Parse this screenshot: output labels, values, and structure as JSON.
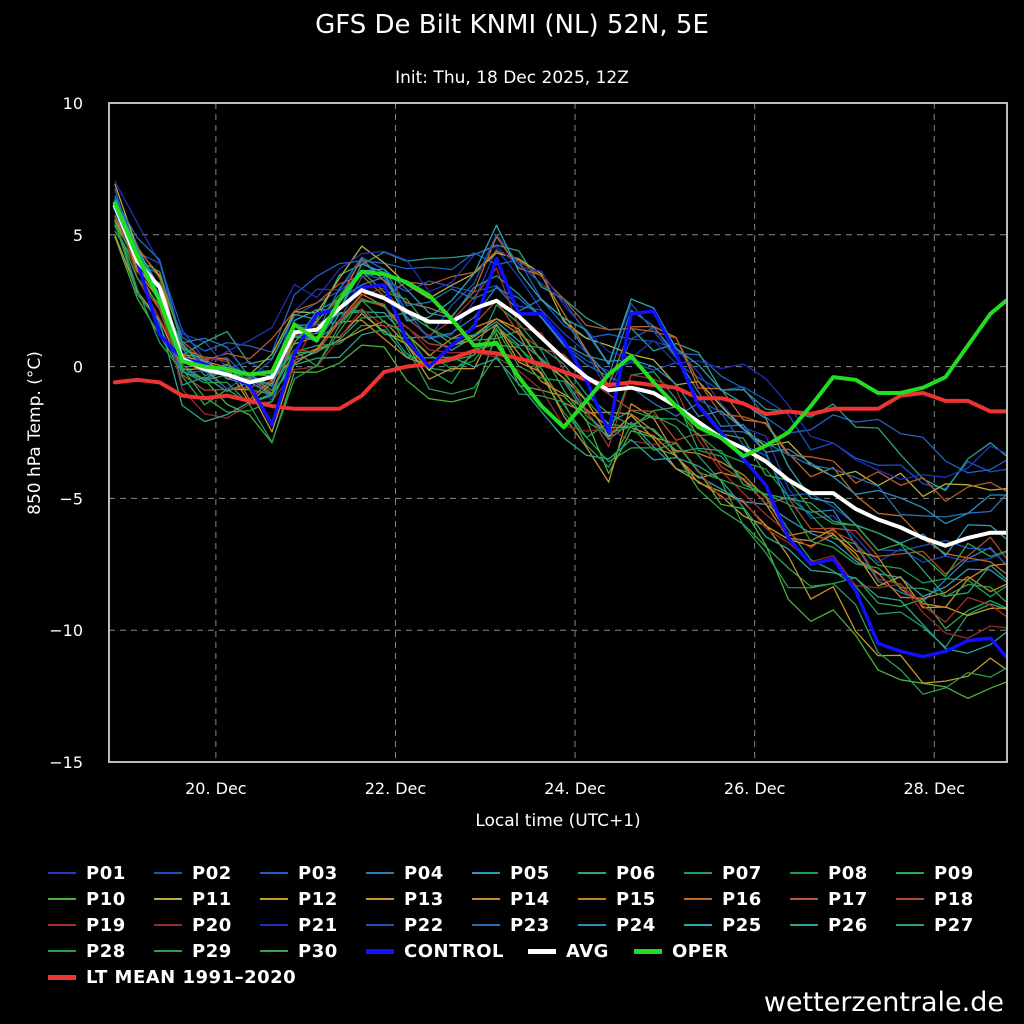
{
  "chart_data": {
    "type": "line",
    "title": "GFS De Bilt KNMI (NL) 52N, 5E",
    "subtitle": "Init: Thu, 18 Dec 2025, 12Z",
    "xlabel": "Local time (UTC+1)",
    "ylabel": "850 hPa Temp. (°C)",
    "ylim": [
      -15,
      10
    ],
    "xlim_days": [
      18.81,
      28.81
    ],
    "yticks": [
      "10",
      "5",
      "0",
      "−5",
      "−10",
      "−15"
    ],
    "ytick_values": [
      10,
      5,
      0,
      -5,
      -10,
      -15
    ],
    "xticks": [
      "20. Dec",
      "22. Dec",
      "24. Dec",
      "26. Dec",
      "28. Dec"
    ],
    "xtick_values": [
      20,
      22,
      24,
      26,
      28
    ],
    "grid": true,
    "x": [
      18.875,
      19.125,
      19.375,
      19.625,
      19.875,
      20.125,
      20.375,
      20.625,
      20.875,
      21.125,
      21.375,
      21.625,
      21.875,
      22.125,
      22.375,
      22.625,
      22.875,
      23.125,
      23.375,
      23.625,
      23.875,
      24.125,
      24.375,
      24.625,
      24.875,
      25.125,
      25.375,
      25.625,
      25.875,
      26.125,
      26.375,
      26.625,
      26.875,
      27.125,
      27.375,
      27.625,
      27.875,
      28.125,
      28.375,
      28.625,
      28.8
    ],
    "series": [
      {
        "name": "CONTROL",
        "color": "#1010ff",
        "width": 3.5,
        "values": [
          6.0,
          4.0,
          1.2,
          0.3,
          0.1,
          -0.3,
          -0.7,
          -2.2,
          0.5,
          2.0,
          2.2,
          3.0,
          3.1,
          1.0,
          0.0,
          0.8,
          1.5,
          4.1,
          2.0,
          2.0,
          1.0,
          -0.5,
          -2.5,
          2.0,
          2.1,
          0.5,
          -1.5,
          -2.5,
          -3.5,
          -4.5,
          -6.5,
          -7.5,
          -7.3,
          -8.5,
          -10.5,
          -10.8,
          -11.0,
          -10.8,
          -10.4,
          -10.3,
          -11.0
        ]
      },
      {
        "name": "AVG",
        "color": "#ffffff",
        "width": 4,
        "values": [
          6.1,
          4.0,
          3.0,
          0.3,
          -0.1,
          -0.3,
          -0.6,
          -0.4,
          1.3,
          1.4,
          2.2,
          2.9,
          2.6,
          2.1,
          1.7,
          1.7,
          2.2,
          2.5,
          1.9,
          1.1,
          0.3,
          -0.4,
          -0.9,
          -0.8,
          -1.0,
          -1.5,
          -2.1,
          -2.7,
          -3.1,
          -3.6,
          -4.3,
          -4.8,
          -4.8,
          -5.4,
          -5.8,
          -6.1,
          -6.5,
          -6.8,
          -6.5,
          -6.3,
          -6.3
        ]
      },
      {
        "name": "OPER",
        "color": "#22dd22",
        "width": 4,
        "values": [
          6.2,
          4.2,
          2.5,
          0.2,
          0.0,
          -0.1,
          -0.3,
          -0.2,
          1.6,
          1.0,
          2.5,
          3.6,
          3.5,
          3.2,
          2.7,
          1.8,
          0.8,
          0.9,
          -0.4,
          -1.5,
          -2.3,
          -1.3,
          -0.3,
          0.4,
          -0.6,
          -1.5,
          -2.3,
          -2.7,
          -3.4,
          -3.0,
          -2.5,
          -1.5,
          -0.4,
          -0.5,
          -1.0,
          -1.0,
          -0.8,
          -0.4,
          0.8,
          2.0,
          2.5
        ]
      },
      {
        "name": "LT MEAN 1991-2020",
        "color": "#ee3333",
        "width": 4,
        "values": [
          -0.6,
          -0.5,
          -0.6,
          -1.1,
          -1.2,
          -1.1,
          -1.3,
          -1.5,
          -1.6,
          -1.6,
          -1.6,
          -1.1,
          -0.2,
          0.0,
          0.1,
          0.3,
          0.6,
          0.5,
          0.3,
          0.1,
          -0.2,
          -0.5,
          -0.7,
          -0.6,
          -0.7,
          -0.8,
          -1.2,
          -1.2,
          -1.4,
          -1.8,
          -1.7,
          -1.8,
          -1.6,
          -1.6,
          -1.6,
          -1.1,
          -1.0,
          -1.3,
          -1.3,
          -1.7,
          -1.7
        ]
      }
    ]
  },
  "members": [
    {
      "name": "P01",
      "color": "#1a3fbf"
    },
    {
      "name": "P02",
      "color": "#1c4fc9"
    },
    {
      "name": "P03",
      "color": "#2160c8"
    },
    {
      "name": "P04",
      "color": "#2a7fc0"
    },
    {
      "name": "P05",
      "color": "#2b9bb8"
    },
    {
      "name": "P06",
      "color": "#2ba08a"
    },
    {
      "name": "P07",
      "color": "#1f9e6a"
    },
    {
      "name": "P08",
      "color": "#1b9e50"
    },
    {
      "name": "P09",
      "color": "#2aa84a"
    },
    {
      "name": "P10",
      "color": "#4bb13a"
    },
    {
      "name": "P11",
      "color": "#b8b03a"
    },
    {
      "name": "P12",
      "color": "#c79a2a"
    },
    {
      "name": "P13",
      "color": "#c8952e"
    },
    {
      "name": "P14",
      "color": "#c48a30"
    },
    {
      "name": "P15",
      "color": "#c9802a"
    },
    {
      "name": "P16",
      "color": "#c06a2a"
    },
    {
      "name": "P17",
      "color": "#b75a2a"
    },
    {
      "name": "P18",
      "color": "#b04a2a"
    },
    {
      "name": "P19",
      "color": "#a6302a"
    },
    {
      "name": "P20",
      "color": "#952a2a"
    },
    {
      "name": "P21",
      "color": "#2030b8"
    },
    {
      "name": "P22",
      "color": "#2250b8"
    },
    {
      "name": "P23",
      "color": "#2570b8"
    },
    {
      "name": "P24",
      "color": "#2890b8"
    },
    {
      "name": "P25",
      "color": "#2aa6b0"
    },
    {
      "name": "P26",
      "color": "#2aa690"
    },
    {
      "name": "P27",
      "color": "#2aa070"
    },
    {
      "name": "P28",
      "color": "#2a9c55"
    },
    {
      "name": "P29",
      "color": "#2f9e45"
    },
    {
      "name": "P30",
      "color": "#39a340"
    }
  ],
  "legend_extra": [
    {
      "name": "CONTROL",
      "color": "#1010ff"
    },
    {
      "name": "AVG",
      "color": "#ffffff"
    },
    {
      "name": "OPER",
      "color": "#22dd22"
    },
    {
      "name": "LT MEAN 1991–2020",
      "color": "#ee3333"
    }
  ],
  "watermark": "wetterzentrale.de"
}
